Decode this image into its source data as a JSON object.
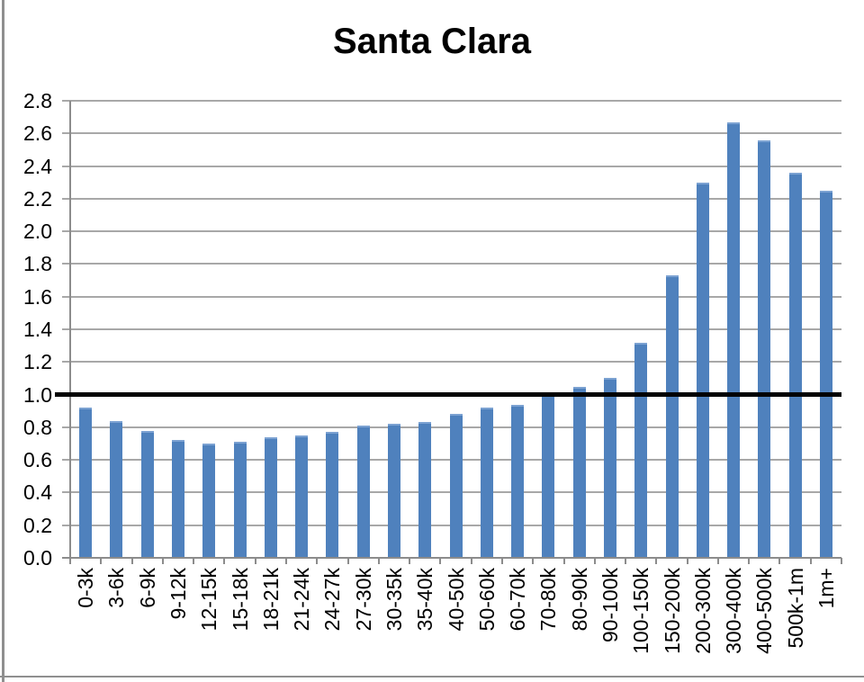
{
  "chart_data": {
    "type": "bar",
    "title": "Santa Clara",
    "categories": [
      "0-3k",
      "3-6k",
      "6-9k",
      "9-12k",
      "12-15k",
      "15-18k",
      "18-21k",
      "21-24k",
      "24-27k",
      "27-30k",
      "30-35k",
      "35-40k",
      "40-50k",
      "50-60k",
      "60-70k",
      "70-80k",
      "80-90k",
      "90-100k",
      "100-150k",
      "150-200k",
      "200-300k",
      "300-400k",
      "400-500k",
      "500k-1m",
      "1m+"
    ],
    "values": [
      0.92,
      0.84,
      0.78,
      0.72,
      0.7,
      0.71,
      0.74,
      0.75,
      0.77,
      0.81,
      0.82,
      0.83,
      0.88,
      0.92,
      0.94,
      1.0,
      1.05,
      1.1,
      1.32,
      1.73,
      2.3,
      2.67,
      2.56,
      2.36,
      2.25
    ],
    "xlabel": "",
    "ylabel": "",
    "ylim": [
      0,
      2.8
    ],
    "y_tick_step": 0.2,
    "y_ticks": [
      "0.0",
      "0.2",
      "0.4",
      "0.6",
      "0.8",
      "1.0",
      "1.2",
      "1.4",
      "1.6",
      "1.8",
      "2.0",
      "2.2",
      "2.4",
      "2.6",
      "2.8"
    ],
    "grid": true,
    "legend_position": "none",
    "reference_line": {
      "value": 1.0
    },
    "colors": {
      "bar": "#4f81bd",
      "bar_highlight": "#7ca2d2",
      "gridline": "#a8a8a8",
      "axis": "#8c8c8c",
      "reference_line": "#000000",
      "title": "#000000",
      "tick_label": "#000000",
      "frame_border": "#8f8f8f",
      "background": "#ffffff"
    }
  }
}
